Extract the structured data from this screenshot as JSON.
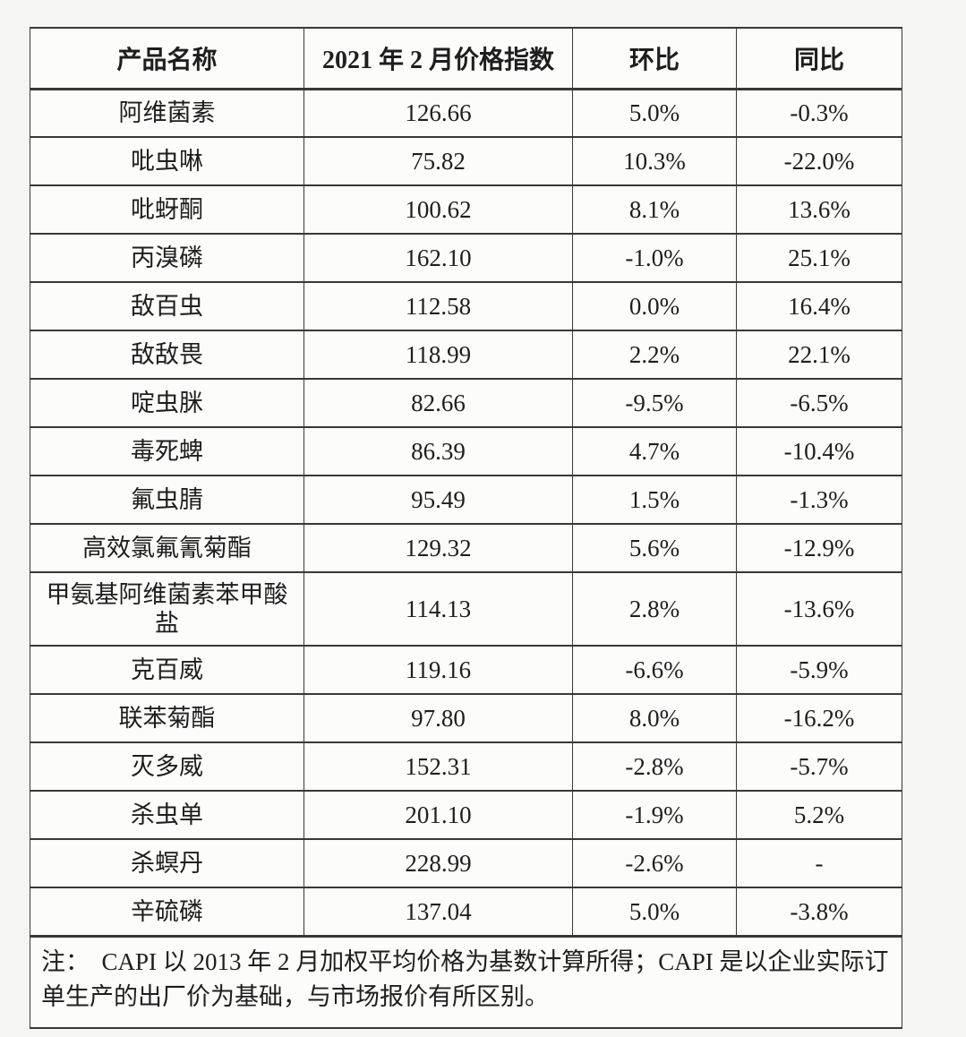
{
  "colors": {
    "page_background": "#f5f5f3",
    "cell_background": "#fcfcfb",
    "border": "#383838",
    "text": "#1e1e1e"
  },
  "table": {
    "columns": [
      "产品名称",
      "2021 年 2 月价格指数",
      "环比",
      "同比"
    ],
    "rows": [
      {
        "name": "阿维菌素",
        "index": "126.66",
        "mom": "5.0%",
        "yoy": "-0.3%"
      },
      {
        "name": "吡虫啉",
        "index": "75.82",
        "mom": "10.3%",
        "yoy": "-22.0%"
      },
      {
        "name": "吡蚜酮",
        "index": "100.62",
        "mom": "8.1%",
        "yoy": "13.6%"
      },
      {
        "name": "丙溴磷",
        "index": "162.10",
        "mom": "-1.0%",
        "yoy": "25.1%"
      },
      {
        "name": "敌百虫",
        "index": "112.58",
        "mom": "0.0%",
        "yoy": "16.4%"
      },
      {
        "name": "敌敌畏",
        "index": "118.99",
        "mom": "2.2%",
        "yoy": "22.1%"
      },
      {
        "name": "啶虫脒",
        "index": "82.66",
        "mom": "-9.5%",
        "yoy": "-6.5%"
      },
      {
        "name": "毒死蜱",
        "index": "86.39",
        "mom": "4.7%",
        "yoy": "-10.4%"
      },
      {
        "name": "氟虫腈",
        "index": "95.49",
        "mom": "1.5%",
        "yoy": "-1.3%"
      },
      {
        "name": "高效氯氟氰菊酯",
        "index": "129.32",
        "mom": "5.6%",
        "yoy": "-12.9%"
      },
      {
        "name": "甲氨基阿维菌素苯甲酸盐",
        "index": "114.13",
        "mom": "2.8%",
        "yoy": "-13.6%",
        "tall": true
      },
      {
        "name": "克百威",
        "index": "119.16",
        "mom": "-6.6%",
        "yoy": "-5.9%"
      },
      {
        "name": "联苯菊酯",
        "index": "97.80",
        "mom": "8.0%",
        "yoy": "-16.2%"
      },
      {
        "name": "灭多威",
        "index": "152.31",
        "mom": "-2.8%",
        "yoy": "-5.7%"
      },
      {
        "name": "杀虫单",
        "index": "201.10",
        "mom": "-1.9%",
        "yoy": "5.2%"
      },
      {
        "name": "杀螟丹",
        "index": "228.99",
        "mom": "-2.6%",
        "yoy": "-"
      },
      {
        "name": "辛硫磷",
        "index": "137.04",
        "mom": "5.0%",
        "yoy": "-3.8%"
      }
    ],
    "note": "注：　CAPI 以 2013 年 2 月加权平均价格为基数计算所得；CAPI 是以企业实际订单生产的出厂价为基础，与市场报价有所区别。"
  }
}
